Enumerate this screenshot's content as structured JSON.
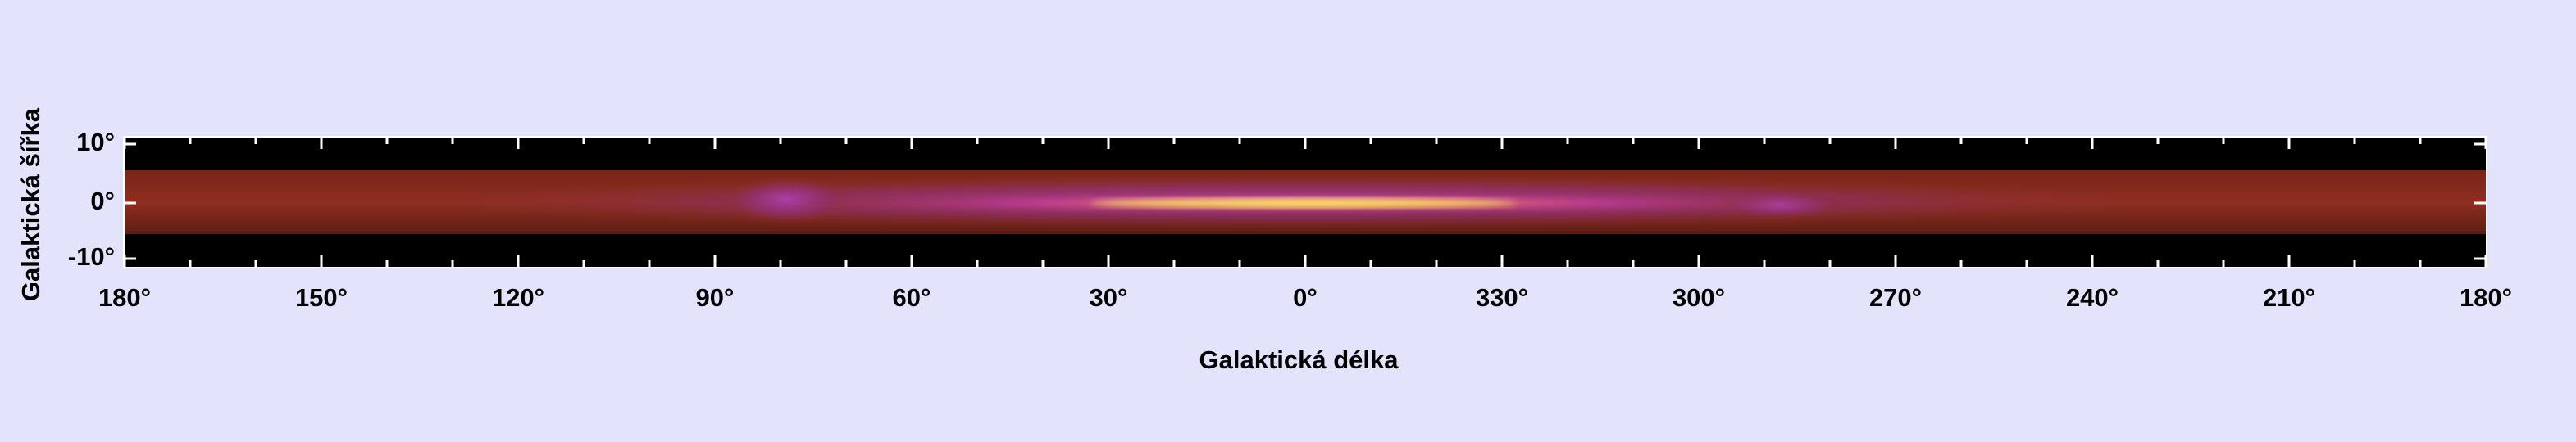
{
  "x_axis": {
    "label": "Galaktická délka",
    "ticks": [
      "180°",
      "150°",
      "120°",
      "90°",
      "60°",
      "30°",
      "0°",
      "330°",
      "300°",
      "270°",
      "240°",
      "210°",
      "180°"
    ]
  },
  "y_axis": {
    "label": "Galaktická šířka",
    "ticks": [
      "10°",
      "0°",
      "-10°"
    ]
  }
}
